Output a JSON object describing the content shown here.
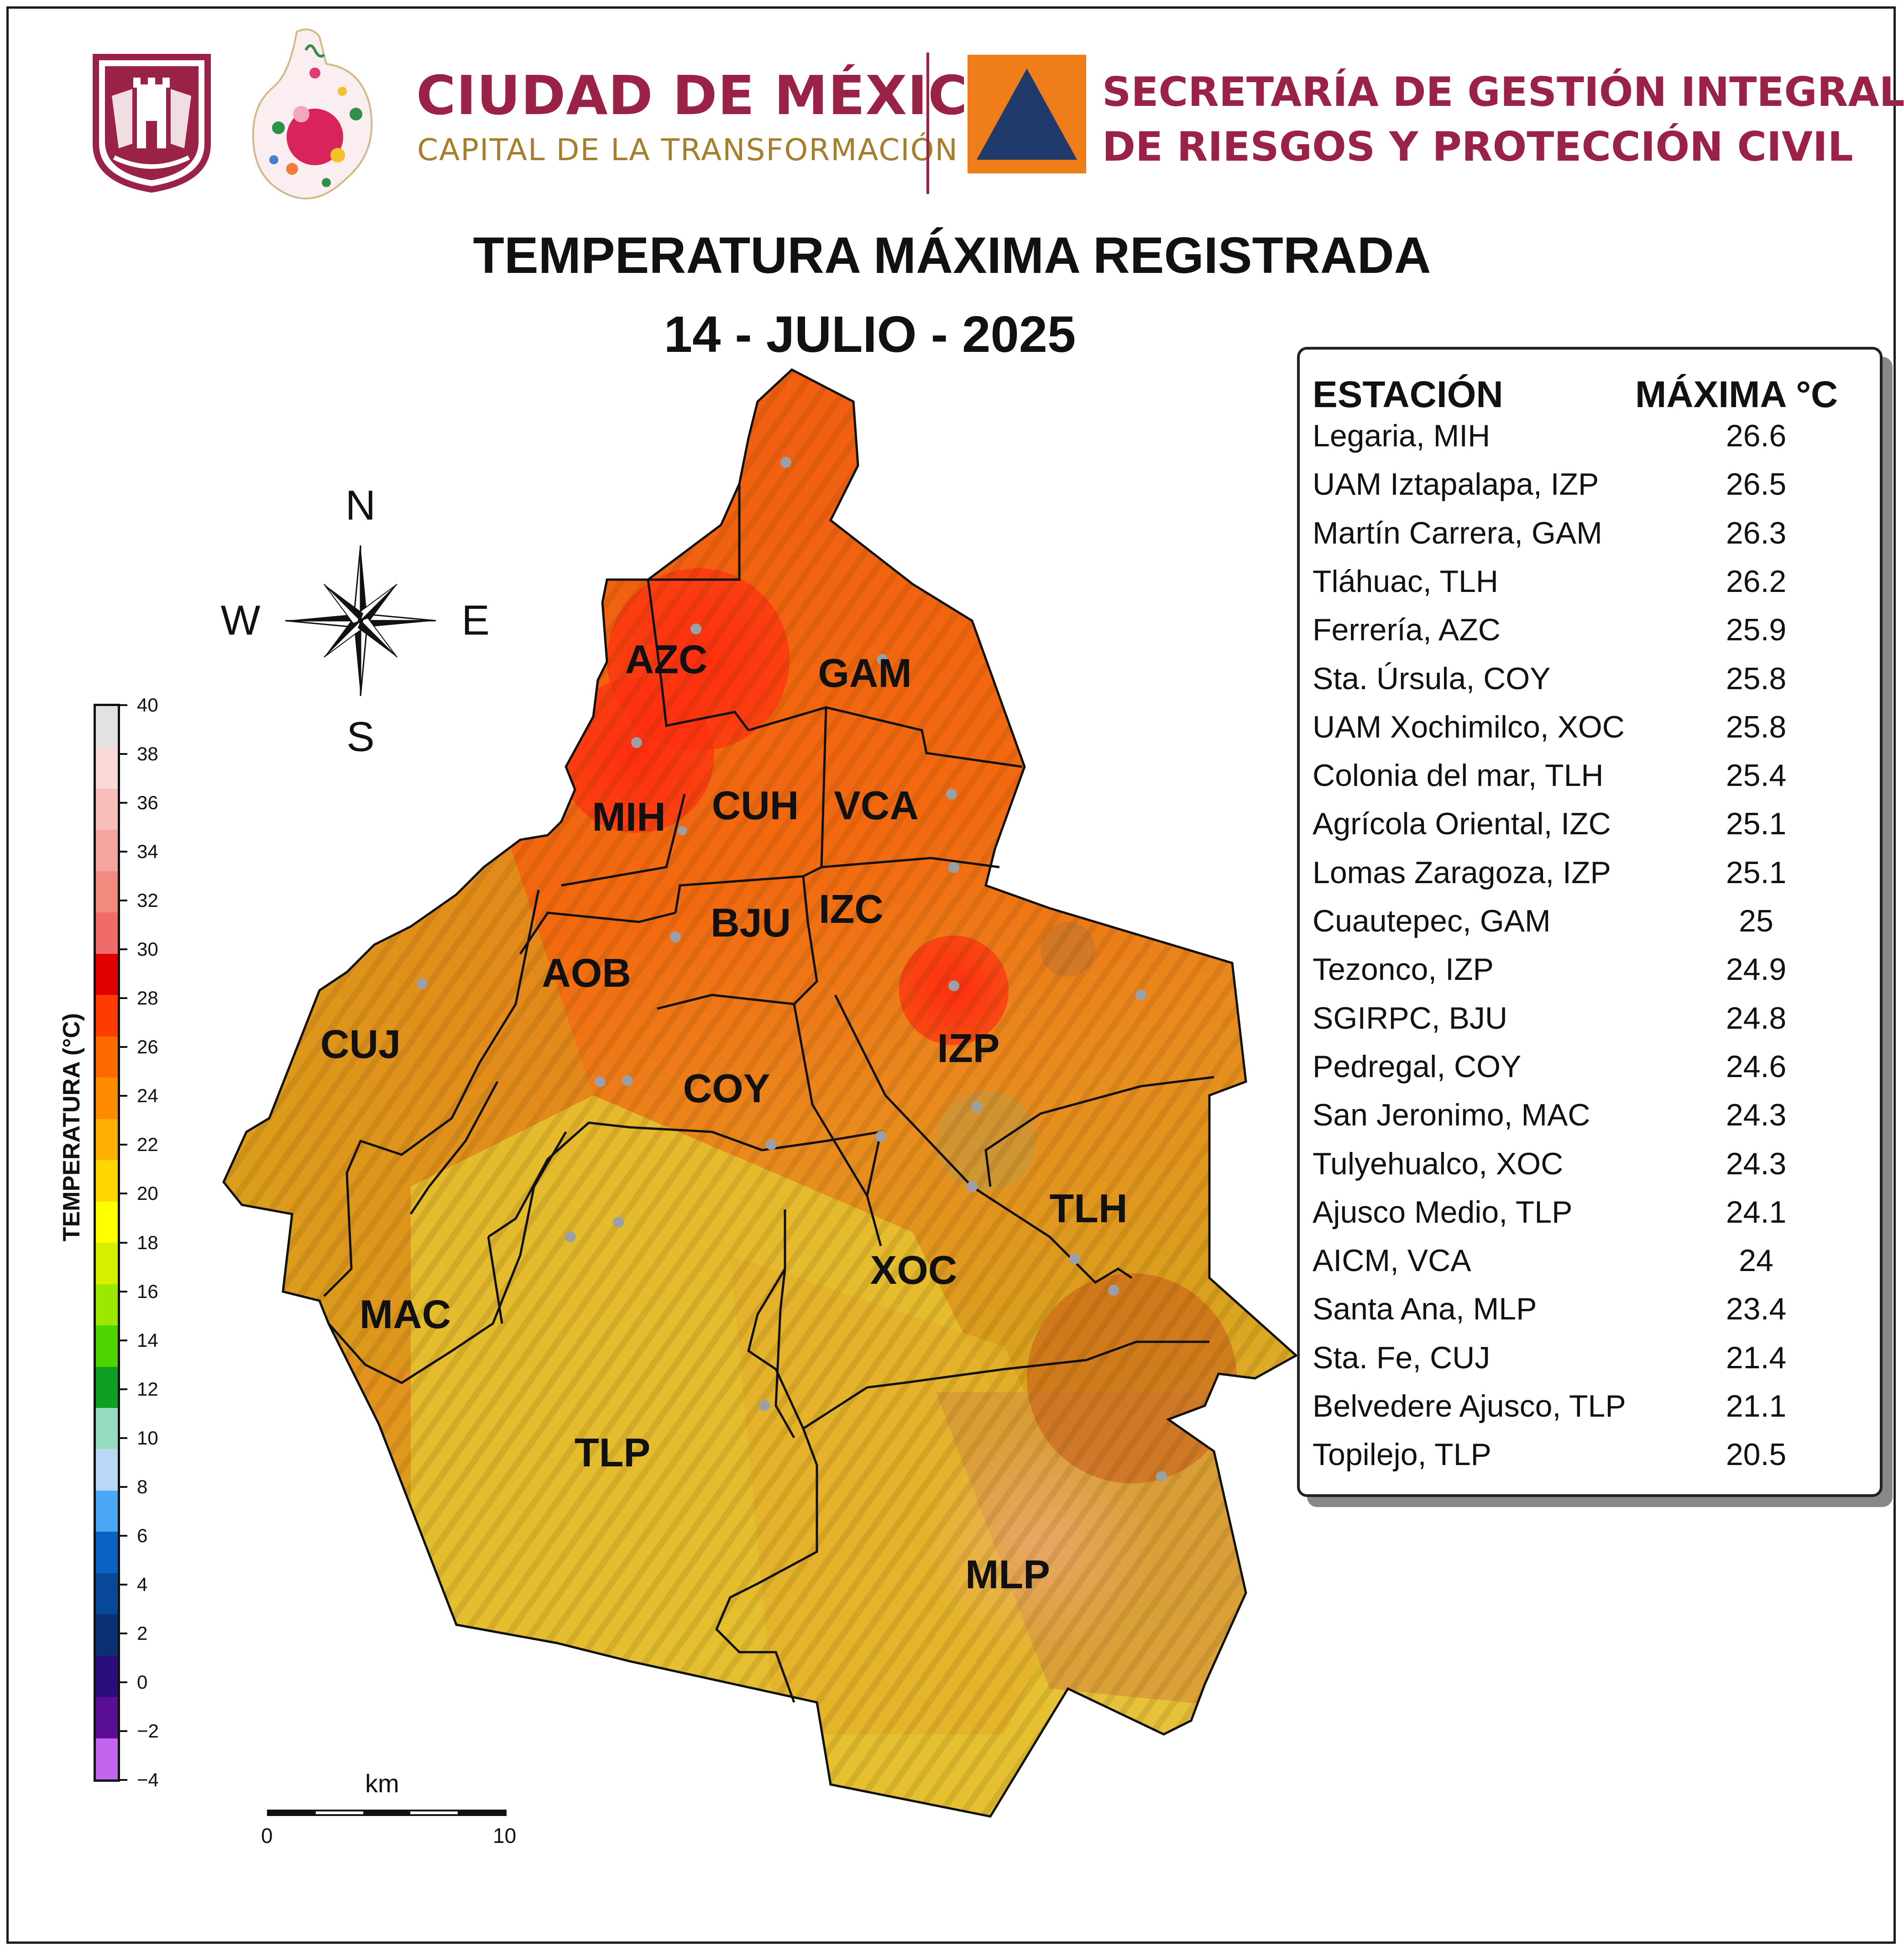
{
  "header": {
    "city_name": "CIUDAD DE MÉXICO",
    "city_slogan": "CAPITAL DE LA TRANSFORMACIÓN",
    "agency_line1": "SECRETARÍA DE GESTIÓN INTEGRAL",
    "agency_line2": "DE RIESGOS Y PROTECCIÓN CIVIL",
    "brand_color": "#9b2247",
    "gold_color": "#a57f2c",
    "protection_civil_orange": "#ef7d1a",
    "protection_civil_navy": "#1f3a6b"
  },
  "title": {
    "line1": "TEMPERATURA MÁXIMA REGISTRADA",
    "line2": "14 - JULIO - 2025"
  },
  "compass": {
    "north": "N",
    "south": "S",
    "east": "E",
    "west": "W"
  },
  "colorbar": {
    "label": "TEMPERATURA (°C)",
    "ticks": [
      "40",
      "38",
      "36",
      "34",
      "32",
      "30",
      "28",
      "26",
      "24",
      "22",
      "20",
      "18",
      "16",
      "14",
      "12",
      "10",
      "8",
      "6",
      "4",
      "2",
      "0",
      "−2",
      "−4"
    ],
    "colors_top_to_bottom": [
      "#e2e2e2",
      "#fbd9d6",
      "#f8bebb",
      "#f6a4a0",
      "#f28a80",
      "#ef6c6a",
      "#df0000",
      "#ff3c00",
      "#ff6a00",
      "#ff8c00",
      "#ffb000",
      "#ffd600",
      "#ffff00",
      "#d8f000",
      "#9be800",
      "#4fd400",
      "#0ea020",
      "#95dcc0",
      "#b9d8f7",
      "#4aa8f5",
      "#0a62c2",
      "#07489a",
      "#0a2f74",
      "#2a0c7c",
      "#5a0e94",
      "#c264ee"
    ]
  },
  "scale_bar": {
    "unit": "km",
    "start": "0",
    "end": "10"
  },
  "municipalities": [
    {
      "code": "AZC"
    },
    {
      "code": "GAM"
    },
    {
      "code": "MIH"
    },
    {
      "code": "CUH"
    },
    {
      "code": "VCA"
    },
    {
      "code": "BJU"
    },
    {
      "code": "IZC"
    },
    {
      "code": "AOB"
    },
    {
      "code": "CUJ"
    },
    {
      "code": "COY"
    },
    {
      "code": "IZP"
    },
    {
      "code": "TLH"
    },
    {
      "code": "XOC"
    },
    {
      "code": "MAC"
    },
    {
      "code": "TLP"
    },
    {
      "code": "MLP"
    }
  ],
  "station_table": {
    "col_station": "ESTACIÓN",
    "col_max": "MÁXIMA °C",
    "rows": [
      {
        "station": "Legaria, MIH",
        "max": "26.6"
      },
      {
        "station": "UAM Iztapalapa, IZP",
        "max": "26.5"
      },
      {
        "station": "Martín Carrera, GAM",
        "max": "26.3"
      },
      {
        "station": "Tláhuac, TLH",
        "max": "26.2"
      },
      {
        "station": "Ferrería, AZC",
        "max": "25.9"
      },
      {
        "station": "Sta. Úrsula, COY",
        "max": "25.8"
      },
      {
        "station": "UAM Xochimilco, XOC",
        "max": "25.8"
      },
      {
        "station": "Colonia del mar, TLH",
        "max": "25.4"
      },
      {
        "station": "Agrícola Oriental, IZC",
        "max": "25.1"
      },
      {
        "station": "Lomas Zaragoza, IZP",
        "max": "25.1"
      },
      {
        "station": "Cuautepec, GAM",
        "max": "25"
      },
      {
        "station": "Tezonco, IZP",
        "max": "24.9"
      },
      {
        "station": "SGIRPC, BJU",
        "max": "24.8"
      },
      {
        "station": "Pedregal, COY",
        "max": "24.6"
      },
      {
        "station": "San Jeronimo, MAC",
        "max": "24.3"
      },
      {
        "station": "Tulyehualco, XOC",
        "max": "24.3"
      },
      {
        "station": "Ajusco Medio, TLP",
        "max": "24.1"
      },
      {
        "station": "AICM, VCA",
        "max": "24"
      },
      {
        "station": "Santa Ana, MLP",
        "max": "23.4"
      },
      {
        "station": "Sta. Fe, CUJ",
        "max": "21.4"
      },
      {
        "station": "Belvedere Ajusco, TLP",
        "max": "21.1"
      },
      {
        "station": "Topilejo, TLP",
        "max": "20.5"
      }
    ]
  }
}
